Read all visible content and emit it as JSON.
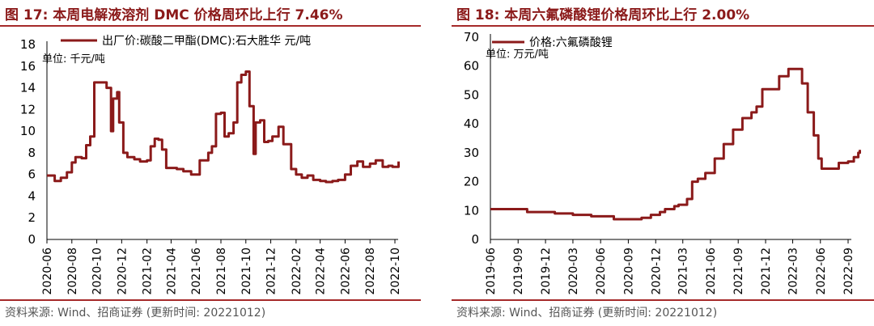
{
  "panels": [
    {
      "title": "图 17:  本周电解液溶剂 DMC 价格周环比上行 7.46%",
      "source": "资料来源: Wind、招商证券 (更新时间: 20221012)"
    },
    {
      "title": "图 18:  本周六氟磷酸锂价格周环比上行 2.00%",
      "source": "资料来源: Wind、招商证券 (更新时间: 20221012)"
    }
  ],
  "colors": {
    "title": "#8b1a1a",
    "line": "#8b1a1a",
    "rule": "#a52a2a"
  },
  "chart_data": [
    {
      "type": "line",
      "x_tick_labels": [
        "2020-06",
        "2020-08",
        "2020-10",
        "2020-12",
        "2021-02",
        "2021-04",
        "2021-06",
        "2021-08",
        "2021-10",
        "2021-12",
        "2022-02",
        "2022-04",
        "2022-06",
        "2022-08",
        "2022-10"
      ],
      "ylim": [
        0,
        18
      ],
      "yticks": [
        0,
        2,
        4,
        6,
        8,
        10,
        12,
        14,
        16,
        18
      ],
      "unit_label": "单位: 千元/吨",
      "legend": "top-left",
      "series": [
        {
          "name": "出厂价:碳酸二甲酯(DMC):石大胜华 元/吨",
          "x": [
            "2020-06-01",
            "2020-06-20",
            "2020-07-05",
            "2020-07-20",
            "2020-08-01",
            "2020-08-10",
            "2020-08-25",
            "2020-09-05",
            "2020-09-15",
            "2020-09-25",
            "2020-10-05",
            "2020-10-15",
            "2020-10-25",
            "2020-11-05",
            "2020-11-10",
            "2020-11-20",
            "2020-11-25",
            "2020-12-05",
            "2020-12-15",
            "2021-01-01",
            "2021-01-15",
            "2021-02-01",
            "2021-02-10",
            "2021-02-20",
            "2021-03-01",
            "2021-03-10",
            "2021-03-20",
            "2021-04-01",
            "2021-04-15",
            "2021-05-01",
            "2021-05-20",
            "2021-06-01",
            "2021-06-10",
            "2021-06-20",
            "2021-07-01",
            "2021-07-10",
            "2021-07-20",
            "2021-08-01",
            "2021-08-10",
            "2021-08-20",
            "2021-09-01",
            "2021-09-10",
            "2021-09-20",
            "2021-10-01",
            "2021-10-10",
            "2021-10-20",
            "2021-10-25",
            "2021-11-05",
            "2021-11-15",
            "2021-11-25",
            "2021-12-05",
            "2021-12-20",
            "2022-01-01",
            "2022-01-20",
            "2022-02-01",
            "2022-02-15",
            "2022-03-01",
            "2022-03-15",
            "2022-04-01",
            "2022-04-15",
            "2022-05-01",
            "2022-05-15",
            "2022-06-01",
            "2022-06-15",
            "2022-07-01",
            "2022-07-15",
            "2022-08-01",
            "2022-08-15",
            "2022-09-01",
            "2022-09-15",
            "2022-09-25",
            "2022-10-01",
            "2022-10-10"
          ],
          "values": [
            5.9,
            5.4,
            5.7,
            6.2,
            7.1,
            7.6,
            7.5,
            8.7,
            9.5,
            14.5,
            14.5,
            14.5,
            14.0,
            10.0,
            13.0,
            13.6,
            10.8,
            8.0,
            7.6,
            7.4,
            7.2,
            7.3,
            8.6,
            9.3,
            9.2,
            8.3,
            6.6,
            6.6,
            6.5,
            6.3,
            6.0,
            6.0,
            7.3,
            7.3,
            8.0,
            8.6,
            11.6,
            11.7,
            9.5,
            9.8,
            10.8,
            14.5,
            15.2,
            15.5,
            12.3,
            7.9,
            10.8,
            11.0,
            9.0,
            9.1,
            9.5,
            10.4,
            8.8,
            6.5,
            6.0,
            5.7,
            5.9,
            5.5,
            5.4,
            5.3,
            5.4,
            5.5,
            6.0,
            6.8,
            7.2,
            6.7,
            7.0,
            7.3,
            6.7,
            6.8,
            6.7,
            6.7,
            7.2
          ]
        }
      ]
    },
    {
      "type": "line",
      "x_tick_labels": [
        "2019-06",
        "2019-09",
        "2019-12",
        "2020-03",
        "2020-06",
        "2020-09",
        "2020-12",
        "2021-03",
        "2021-06",
        "2021-09",
        "2021-12",
        "2022-03",
        "2022-06",
        "2022-09"
      ],
      "ylim": [
        0,
        70
      ],
      "yticks": [
        0,
        10,
        20,
        30,
        40,
        50,
        60,
        70
      ],
      "unit_label": "单位: 万元/吨",
      "legend": "top-left",
      "series": [
        {
          "name": "价格:六氟磷酸锂",
          "x": [
            "2019-06-01",
            "2019-08-01",
            "2019-10-01",
            "2019-12-01",
            "2020-01-01",
            "2020-03-01",
            "2020-05-01",
            "2020-06-20",
            "2020-07-15",
            "2020-09-01",
            "2020-10-15",
            "2020-11-15",
            "2020-12-15",
            "2021-01-01",
            "2021-02-01",
            "2021-02-15",
            "2021-03-15",
            "2021-04-01",
            "2021-04-20",
            "2021-05-15",
            "2021-06-15",
            "2021-07-15",
            "2021-08-15",
            "2021-09-15",
            "2021-10-15",
            "2021-11-01",
            "2021-11-20",
            "2022-01-15",
            "2022-02-15",
            "2022-03-15",
            "2022-04-01",
            "2022-04-20",
            "2022-05-10",
            "2022-05-25",
            "2022-06-05",
            "2022-07-01",
            "2022-08-01",
            "2022-09-01",
            "2022-09-20",
            "2022-10-05",
            "2022-10-10"
          ],
          "values": [
            10.5,
            10.5,
            9.5,
            9.5,
            9.0,
            8.5,
            8.0,
            8.0,
            7.0,
            7.0,
            7.5,
            8.5,
            9.5,
            10.5,
            11.5,
            12.0,
            14.0,
            20.0,
            21.0,
            23.0,
            28.0,
            33.0,
            38.0,
            42.0,
            44.0,
            46.0,
            52.0,
            56.5,
            59.0,
            59.0,
            54.0,
            44.0,
            36.0,
            28.0,
            24.5,
            24.5,
            26.5,
            27.0,
            28.5,
            30.0,
            31.0
          ]
        }
      ]
    }
  ]
}
